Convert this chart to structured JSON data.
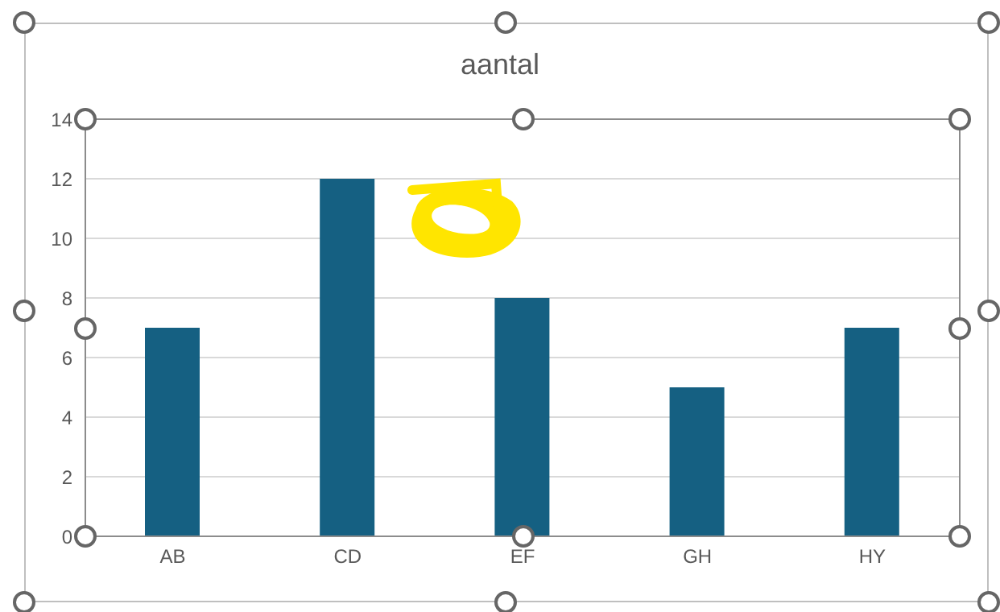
{
  "chart_data": {
    "type": "bar",
    "title": "aantal",
    "categories": [
      "AB",
      "CD",
      "EF",
      "GH",
      "HY"
    ],
    "values": [
      7,
      12,
      8,
      5,
      7
    ],
    "color": "#156082",
    "ylim": [
      0,
      14
    ],
    "yticks": [
      0,
      2,
      4,
      6,
      8,
      10,
      12,
      14
    ],
    "grid": "y"
  }
}
